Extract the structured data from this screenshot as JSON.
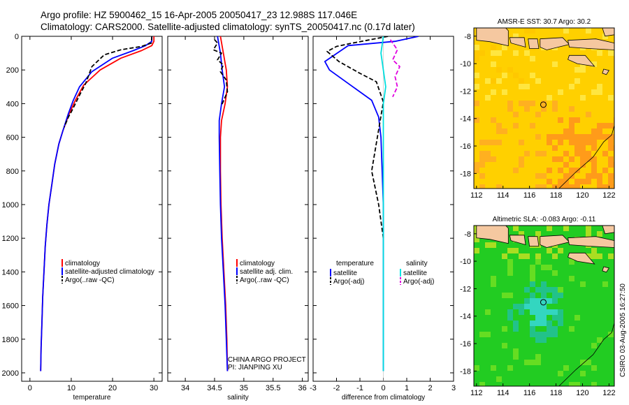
{
  "header": {
    "line1": "Argo profile: HZ 5900462_15 16-Apr-2005 20050417_23 12.988S 117.046E",
    "line2": "Climatology: CARS2000. Satellite-adjusted climatology: synTS_20050417.nc (0.17d later)"
  },
  "colors": {
    "climatology": "#ff0000",
    "satellite": "#0000ff",
    "argo": "#000000",
    "sal_satellite": "#00e5e5",
    "sal_argo": "#e000e0",
    "land": "#f5c8a0",
    "sst_bg": "#ffd000",
    "sla_bg": "#22cc22"
  },
  "chart_data": [
    {
      "type": "line",
      "id": "temperature",
      "xlabel": "temperature",
      "xlim": [
        -2,
        32
      ],
      "ylim": [
        2050,
        0
      ],
      "xticks": [
        "0",
        "10",
        "20",
        "30"
      ],
      "xtick_values": [
        0,
        10,
        20,
        30
      ],
      "yticks": [
        "0",
        "200",
        "400",
        "600",
        "800",
        "1000",
        "1200",
        "1400",
        "1600",
        "1800",
        "2000"
      ],
      "ytick_values": [
        0,
        200,
        400,
        600,
        800,
        1000,
        1200,
        1400,
        1600,
        1800,
        2000
      ],
      "series": [
        {
          "name": "climatology",
          "color": "#ff0000",
          "x": [
            30,
            30,
            29.5,
            27,
            22,
            17,
            13,
            11,
            9.5,
            8,
            7,
            6,
            5.3,
            4.6,
            4.1,
            3.7,
            3.4,
            3.1,
            2.9,
            2.7,
            2.6
          ],
          "y": [
            0,
            30,
            55,
            85,
            130,
            200,
            290,
            380,
            460,
            560,
            640,
            760,
            880,
            1000,
            1120,
            1250,
            1400,
            1550,
            1700,
            1850,
            1990
          ]
        },
        {
          "name": "satellite-adjusted climatology",
          "color": "#0000ff",
          "x": [
            29.5,
            29.5,
            28,
            25,
            20,
            15,
            12,
            10.5,
            9.3,
            8,
            7,
            6,
            5.3,
            4.6,
            4.1,
            3.7,
            3.4,
            3.1,
            2.9,
            2.7,
            2.6
          ],
          "y": [
            0,
            30,
            55,
            85,
            130,
            210,
            300,
            380,
            460,
            560,
            640,
            760,
            880,
            1000,
            1120,
            1250,
            1400,
            1550,
            1700,
            1850,
            1990
          ]
        },
        {
          "name": "Argo(..raw -QC)",
          "color": "#000000",
          "dashed": true,
          "x": [
            29.5,
            29.4,
            27,
            22,
            18,
            15,
            13.5,
            12,
            11,
            10,
            9.3,
            8.3
          ],
          "y": [
            0,
            40,
            60,
            80,
            110,
            180,
            280,
            350,
            400,
            450,
            480,
            540
          ]
        }
      ],
      "legend": [
        "climatology",
        "satellite-adjusted climatology",
        "Argo(..raw -QC)"
      ]
    },
    {
      "type": "line",
      "id": "salinity",
      "xlabel": "salinity",
      "xlim": [
        33.7,
        36.1
      ],
      "ylim": [
        2050,
        0
      ],
      "xticks": [
        "34",
        "34.5",
        "35",
        "35.5",
        "36"
      ],
      "xtick_values": [
        34,
        34.5,
        35,
        35.5,
        36
      ],
      "series": [
        {
          "name": "climatology",
          "color": "#ff0000",
          "x": [
            34.6,
            34.65,
            34.7,
            34.72,
            34.68,
            34.62,
            34.6,
            34.6,
            34.61,
            34.63,
            34.66,
            34.69,
            34.71,
            34.72
          ],
          "y": [
            0,
            100,
            200,
            300,
            400,
            500,
            600,
            800,
            1000,
            1200,
            1400,
            1600,
            1800,
            1990
          ]
        },
        {
          "name": "satellite adj. clim.",
          "color": "#0000ff",
          "x": [
            34.55,
            34.6,
            34.63,
            34.67,
            34.62,
            34.58,
            34.58,
            34.59,
            34.6,
            34.62,
            34.65,
            34.68,
            34.7,
            34.72
          ],
          "y": [
            0,
            100,
            200,
            300,
            400,
            500,
            600,
            800,
            1000,
            1200,
            1400,
            1600,
            1800,
            1990
          ]
        },
        {
          "name": "Argo(..raw -QC)",
          "color": "#000000",
          "dashed": true,
          "x": [
            34.5,
            34.55,
            34.48,
            34.62,
            34.55,
            34.65,
            34.6,
            34.7,
            34.72,
            34.62
          ],
          "y": [
            20,
            40,
            80,
            100,
            140,
            170,
            210,
            260,
            330,
            410
          ]
        }
      ],
      "legend": [
        "climatology",
        "satellite adj. clim.",
        "Argo(..raw -QC)"
      ],
      "annotation_line1": "CHINA ARGO PROJECT",
      "annotation_line2": "PI: JIANPING XU"
    },
    {
      "type": "line",
      "id": "difference",
      "xlabel": "difference from climatology",
      "xlim": [
        -3,
        3
      ],
      "ylim": [
        2050,
        0
      ],
      "xticks": [
        "-3",
        "-2",
        "-1",
        "0",
        "1",
        "2",
        "3"
      ],
      "xtick_values": [
        -3,
        -2,
        -1,
        0,
        1,
        2,
        3
      ],
      "series": [
        {
          "name": "satellite",
          "group": "temperature",
          "color": "#0000ff",
          "x": [
            1.5,
            0.5,
            -1.5,
            -2.5,
            -2.3,
            -1.3,
            -0.5,
            -0.2,
            -0.1,
            0,
            0
          ],
          "y": [
            0,
            30,
            55,
            150,
            200,
            300,
            380,
            480,
            600,
            1000,
            1990
          ]
        },
        {
          "name": "Argo(-adj)",
          "group": "temperature",
          "color": "#000000",
          "dashed": true,
          "x": [
            0.2,
            -1.3,
            -2,
            -2.4,
            -1.9,
            -1,
            -0.3,
            0,
            -0.5,
            -0.2,
            0
          ],
          "y": [
            0,
            40,
            60,
            90,
            150,
            220,
            270,
            390,
            800,
            1000,
            1200
          ]
        },
        {
          "name": "satellite",
          "group": "salinity",
          "color": "#00dede",
          "x": [
            0,
            -0.1,
            0,
            0.1,
            0,
            0,
            0
          ],
          "y": [
            0,
            100,
            200,
            300,
            400,
            1000,
            1990
          ]
        },
        {
          "name": "Argo(-adj)",
          "group": "salinity",
          "color": "#e000e0",
          "dashed": true,
          "x": [
            0.3,
            0.6,
            0.4,
            0.7,
            0.5,
            0.6,
            0.4
          ],
          "y": [
            20,
            80,
            140,
            180,
            240,
            300,
            360
          ]
        }
      ],
      "legend_temperature": {
        "title": "temperature",
        "items": [
          "satellite",
          "Argo(-adj)"
        ]
      },
      "legend_salinity": {
        "title": "salinity",
        "items": [
          "satellite",
          "Argo(-adj)"
        ]
      }
    },
    {
      "type": "heatmap",
      "id": "sst_map",
      "title": "AMSR-E SST: 30.7 Argo: 30.2",
      "xticks": [
        "112",
        "114",
        "116",
        "118",
        "120",
        "122"
      ],
      "xtick_values": [
        112,
        114,
        116,
        118,
        120,
        122
      ],
      "yticks": [
        "-8",
        "-10",
        "-12",
        "-14",
        "-16",
        "-18"
      ],
      "ytick_values": [
        -8,
        -10,
        -12,
        -14,
        -16,
        -18
      ],
      "xlim": [
        111.8,
        122.4
      ],
      "ylim": [
        -19.1,
        -7.4
      ],
      "marker": {
        "lon": 117.046,
        "lat": -12.988
      }
    },
    {
      "type": "heatmap",
      "id": "sla_map",
      "title": "Altimetric SLA: -0.083 Argo: -0.11",
      "xticks": [
        "112",
        "114",
        "116",
        "118",
        "120",
        "122"
      ],
      "xtick_values": [
        112,
        114,
        116,
        118,
        120,
        122
      ],
      "yticks": [
        "-8",
        "-10",
        "-12",
        "-14",
        "-16",
        "-18"
      ],
      "ytick_values": [
        -8,
        -10,
        -12,
        -14,
        -16,
        -18
      ],
      "xlim": [
        111.8,
        122.4
      ],
      "ylim": [
        -19.1,
        -7.4
      ],
      "marker": {
        "lon": 117.046,
        "lat": -12.988
      }
    }
  ],
  "stamp": "CSIRO 03-Aug-2005 16:27:50"
}
